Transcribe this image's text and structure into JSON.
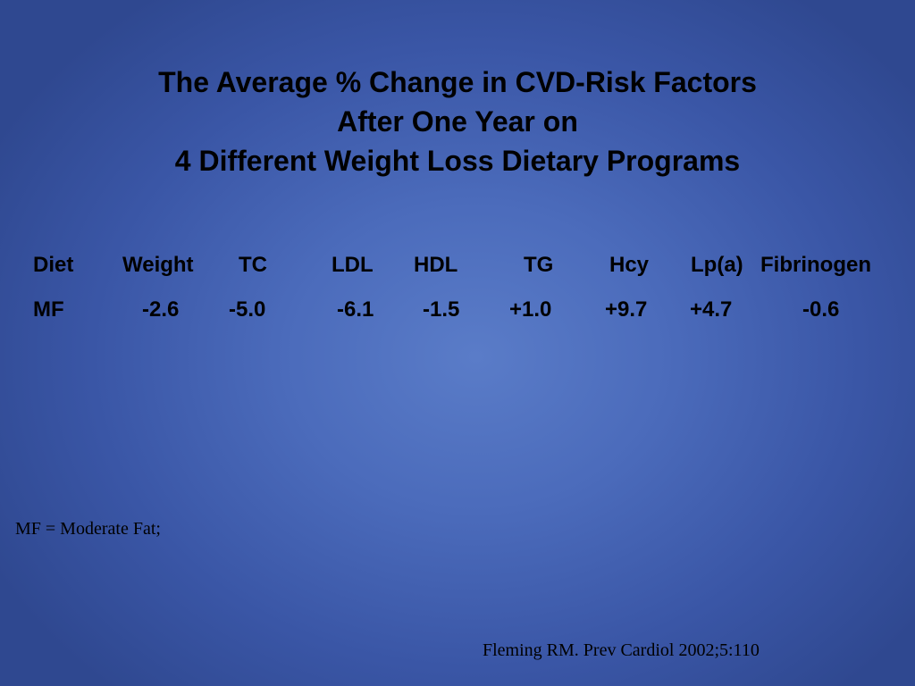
{
  "title": {
    "line1": "The Average % Change in CVD-Risk Factors",
    "line2": "After One Year on",
    "line3": "4 Different Weight Loss Dietary Programs"
  },
  "table": {
    "headers": [
      "Diet",
      "Weight",
      "TC",
      "LDL",
      "HDL",
      "TG",
      "Hcy",
      "Lp(a)",
      "Fibrinogen"
    ],
    "rows": [
      [
        "MF",
        "-2.6",
        "-5.0",
        "-6.1",
        "-1.5",
        "+1.0",
        "+9.7",
        "+4.7",
        "-0.6"
      ]
    ]
  },
  "footnote": "MF = Moderate Fat;",
  "citation": "Fleming RM. Prev Cardiol 2002;5:110"
}
